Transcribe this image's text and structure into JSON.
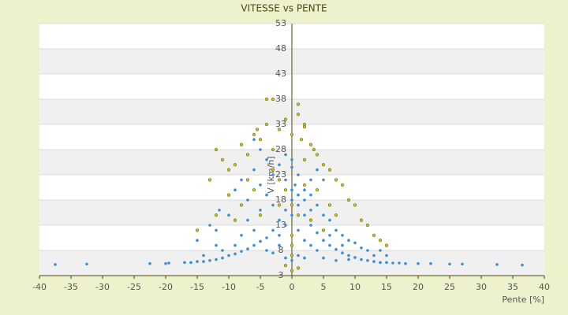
{
  "chart_data": {
    "type": "scatter",
    "title": "VITESSE vs PENTE",
    "x_label": "Pente [%]",
    "y_label": "V [km/h]",
    "xlim": [
      -40,
      40
    ],
    "xticks": [
      -40,
      -35,
      -30,
      -25,
      -20,
      -15,
      -10,
      -5,
      0,
      5,
      10,
      15,
      20,
      25,
      30,
      35,
      40
    ],
    "ylim": [
      3,
      53
    ],
    "yticks": [
      3,
      8,
      13,
      18,
      23,
      28,
      33,
      38,
      43,
      48,
      53
    ],
    "series": [
      {
        "color": "#c8c030",
        "x": [
          -12,
          -11,
          -10,
          -9,
          -8,
          -7,
          -6,
          -5.5,
          -5,
          -4,
          -3,
          -2,
          -1,
          0,
          1,
          1.5,
          2,
          3,
          3.5,
          4,
          5,
          6,
          7,
          8,
          9,
          10,
          11,
          12,
          13,
          14,
          15,
          -3,
          -4,
          1,
          2,
          -1,
          0,
          1,
          -2,
          2,
          -6,
          -7,
          -13,
          -15,
          -12,
          -9,
          0,
          0,
          0,
          0,
          -1,
          1,
          -5,
          3,
          5,
          6,
          4,
          -8,
          -10,
          7,
          -3,
          2,
          -2
        ],
        "values": [
          28,
          26,
          24,
          25,
          29,
          27,
          31,
          32,
          30,
          33,
          28,
          32,
          34,
          31,
          35,
          30,
          33,
          29,
          28,
          27,
          25,
          24,
          22,
          21,
          18,
          17,
          14,
          13,
          11,
          10,
          9,
          38,
          38,
          37,
          32.5,
          20,
          17,
          15,
          17,
          21,
          20,
          22,
          22,
          12,
          15,
          14,
          11,
          9,
          7,
          4,
          5,
          4.5,
          15,
          14,
          12,
          17,
          20,
          17,
          19,
          15,
          24,
          26,
          22
        ]
      },
      {
        "color": "#3a8fd6",
        "x": [
          -37.5,
          -32.5,
          -22.5,
          -20,
          -19.5,
          -17,
          -16,
          -15,
          -14,
          -13,
          -12,
          -11,
          -10,
          -9,
          -8,
          -7,
          -6,
          -5,
          -4,
          -3,
          -2,
          -1,
          0,
          1,
          2,
          3,
          4,
          5,
          6,
          7,
          8,
          9,
          10,
          11,
          12,
          13,
          14,
          15,
          16,
          17,
          18,
          20,
          22,
          25,
          27,
          32.5,
          36.5,
          -13,
          -12,
          -11.5,
          -10,
          -9,
          -8,
          -7,
          -6,
          -5,
          -4,
          -3,
          -2,
          -1,
          0,
          0.5,
          1,
          2,
          3,
          4,
          5,
          6,
          7,
          8,
          9,
          10,
          11,
          12,
          13,
          -2,
          -1,
          0,
          1,
          2,
          3,
          4,
          -4,
          -3,
          -6,
          -7,
          -5,
          -3,
          0,
          1,
          2,
          3,
          6,
          8,
          -8,
          -9,
          -11,
          -14,
          -12,
          1,
          0,
          -1,
          2,
          15,
          14,
          -15,
          5,
          7,
          9,
          -2,
          3,
          -1,
          0,
          -4,
          -5,
          -6,
          4,
          5
        ],
        "values": [
          5.2,
          5.3,
          5.4,
          5.4,
          5.5,
          5.6,
          5.6,
          5.8,
          5.8,
          6,
          6.2,
          6.5,
          7,
          7.3,
          7.8,
          8.3,
          9,
          9.8,
          10.5,
          12,
          14,
          16,
          18,
          17,
          15,
          13,
          11.5,
          10,
          9,
          8.2,
          7.5,
          7,
          6.6,
          6.2,
          6,
          5.8,
          5.6,
          5.6,
          5.5,
          5.5,
          5.4,
          5.4,
          5.4,
          5.3,
          5.3,
          5.2,
          5.1,
          13,
          12,
          16,
          15,
          20,
          22,
          18,
          24,
          21,
          19,
          23,
          25,
          22,
          24.5,
          21,
          23,
          20,
          19,
          17,
          15,
          14,
          12,
          11,
          10,
          9.5,
          8.5,
          8,
          7,
          11,
          13,
          15,
          12,
          10,
          9,
          8,
          8,
          7.5,
          12,
          14,
          16,
          17,
          20,
          19,
          18,
          16,
          11,
          9,
          11,
          9,
          8,
          7,
          9,
          7,
          6,
          6.5,
          6.5,
          7,
          8,
          10,
          6.5,
          6,
          6.2,
          9,
          22,
          27,
          26,
          26,
          28,
          30,
          24,
          22
        ]
      }
    ]
  }
}
